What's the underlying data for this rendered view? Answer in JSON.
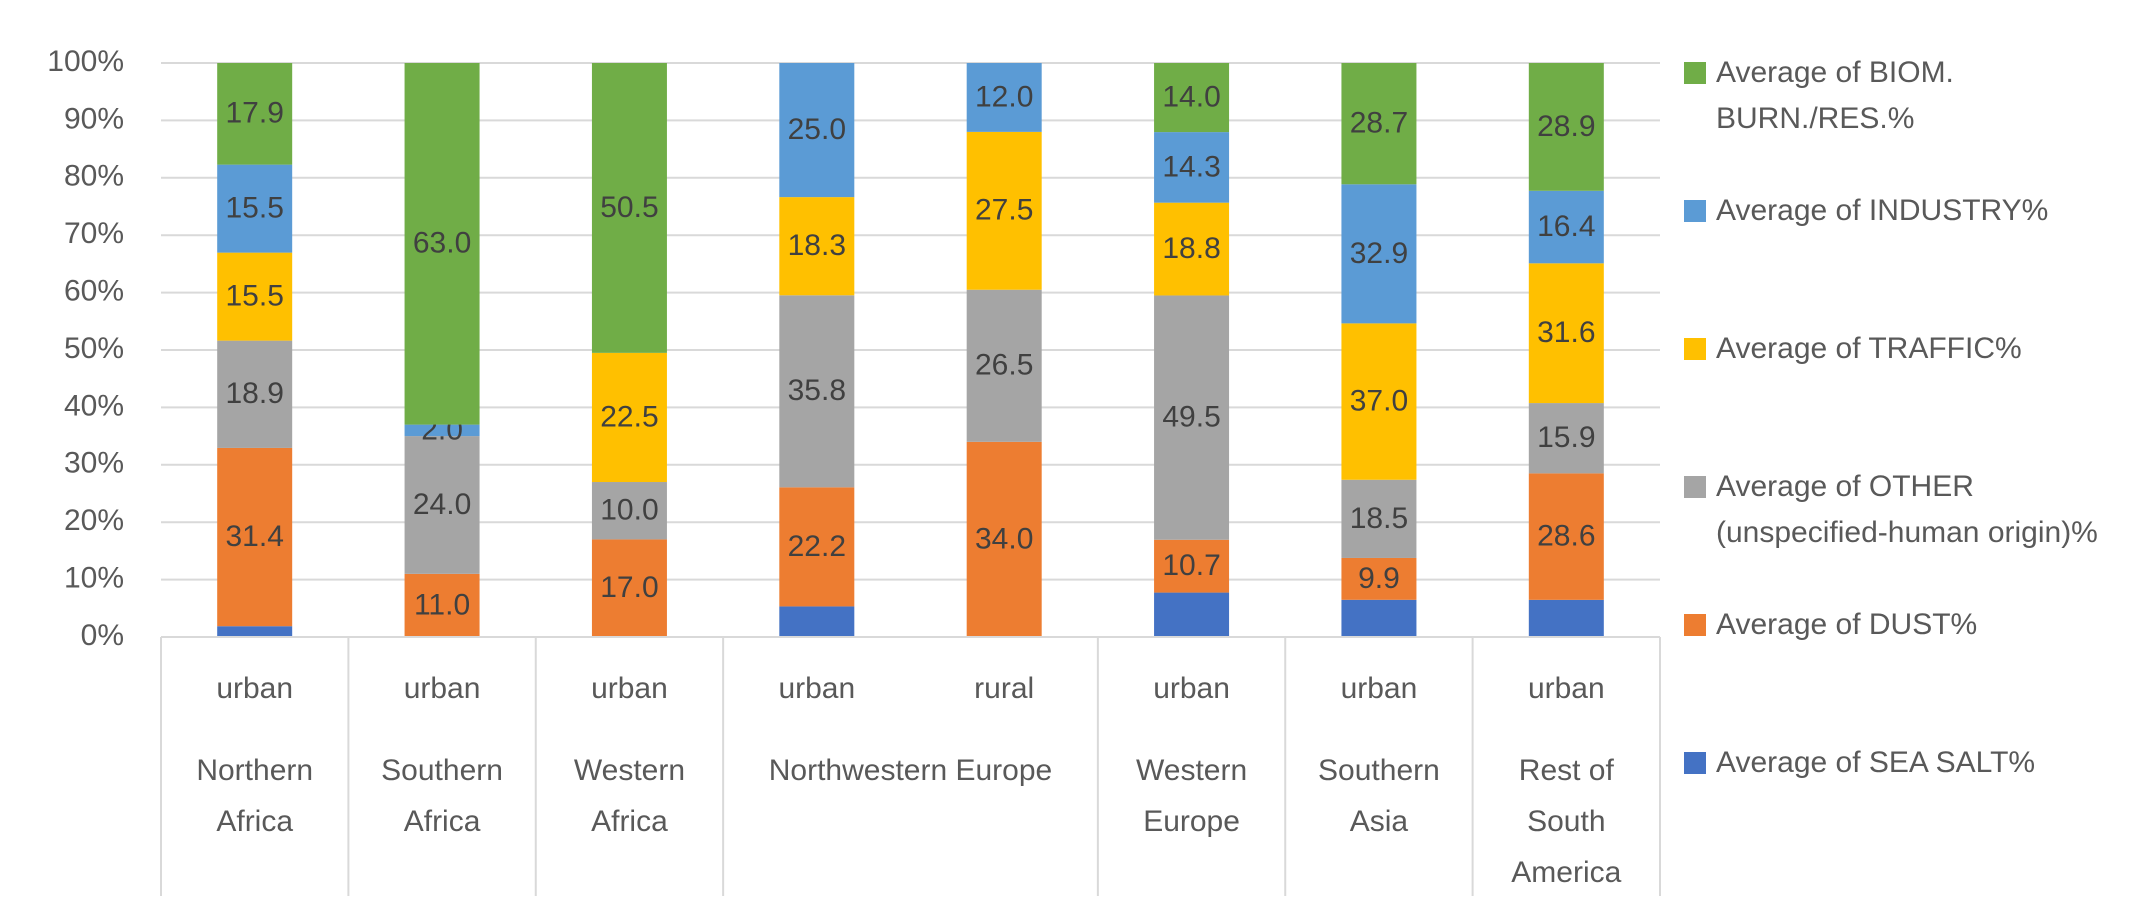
{
  "chart_data": {
    "type": "bar",
    "stacking": "percent",
    "categories": [
      "urban",
      "urban",
      "urban",
      "urban",
      "rural",
      "urban",
      "urban",
      "urban"
    ],
    "groups": [
      "Northern Africa",
      "Southern Africa",
      "Western Africa",
      "Northwestern Europe",
      "Northwestern Europe",
      "Western Europe",
      "Southern Asia",
      "Rest of South America"
    ],
    "series": [
      {
        "name": "Average of SEA SALT%",
        "color": "#4472c4",
        "values": [
          1.9,
          null,
          null,
          5.7,
          null,
          9.0,
          8.8,
          8.4
        ]
      },
      {
        "name": "Average of DUST%",
        "color": "#ed7d31",
        "values": [
          31.4,
          11.0,
          17.0,
          22.2,
          34.0,
          10.7,
          9.9,
          28.6
        ],
        "value_labels": [
          "31.4",
          "11.0",
          "17.0",
          "22.2",
          "34.0",
          "10.7",
          "9.9",
          "28.6"
        ]
      },
      {
        "name": "Average of OTHER (unspecified-human origin)%",
        "color": "#a5a5a5",
        "values": [
          18.9,
          24.0,
          10.0,
          35.8,
          26.5,
          49.5,
          18.5,
          15.9
        ],
        "value_labels": [
          "18.9",
          "24.0",
          "10.0",
          "35.8",
          "26.5",
          "49.5",
          "18.5",
          "15.9"
        ]
      },
      {
        "name": "Average of TRAFFIC%",
        "color": "#ffc000",
        "values": [
          15.5,
          null,
          22.5,
          18.3,
          27.5,
          18.8,
          37.0,
          31.6
        ],
        "value_labels": [
          "15.5",
          null,
          "22.5",
          "18.3",
          "27.5",
          "18.8",
          "37.0",
          "31.6"
        ]
      },
      {
        "name": "Average of INDUSTRY%",
        "color": "#5b9bd5",
        "values": [
          15.5,
          2.0,
          null,
          25.0,
          12.0,
          14.3,
          32.9,
          16.4
        ],
        "value_labels": [
          "15.5",
          "2.0",
          null,
          "25.0",
          "12.0",
          "14.3",
          "32.9",
          "16.4"
        ]
      },
      {
        "name": "Average of BIOM. BURN./RES.%",
        "color": "#70ad47",
        "values": [
          17.9,
          63.0,
          50.5,
          null,
          null,
          14.0,
          28.7,
          28.9
        ],
        "value_labels": [
          "17.9",
          "63.0",
          "50.5",
          null,
          null,
          "14.0",
          "28.7",
          "28.9"
        ]
      }
    ],
    "ylim": [
      0,
      100
    ],
    "yticks": [
      {
        "value": 0,
        "label": "0%"
      },
      {
        "value": 10,
        "label": "10%"
      },
      {
        "value": 20,
        "label": "20%"
      },
      {
        "value": 30,
        "label": "30%"
      },
      {
        "value": 40,
        "label": "40%"
      },
      {
        "value": 50,
        "label": "50%"
      },
      {
        "value": 60,
        "label": "60%"
      },
      {
        "value": 70,
        "label": "70%"
      },
      {
        "value": 80,
        "label": "80%"
      },
      {
        "value": 90,
        "label": "90%"
      },
      {
        "value": 100,
        "label": "100%"
      }
    ],
    "grid": true,
    "legend": "right"
  }
}
